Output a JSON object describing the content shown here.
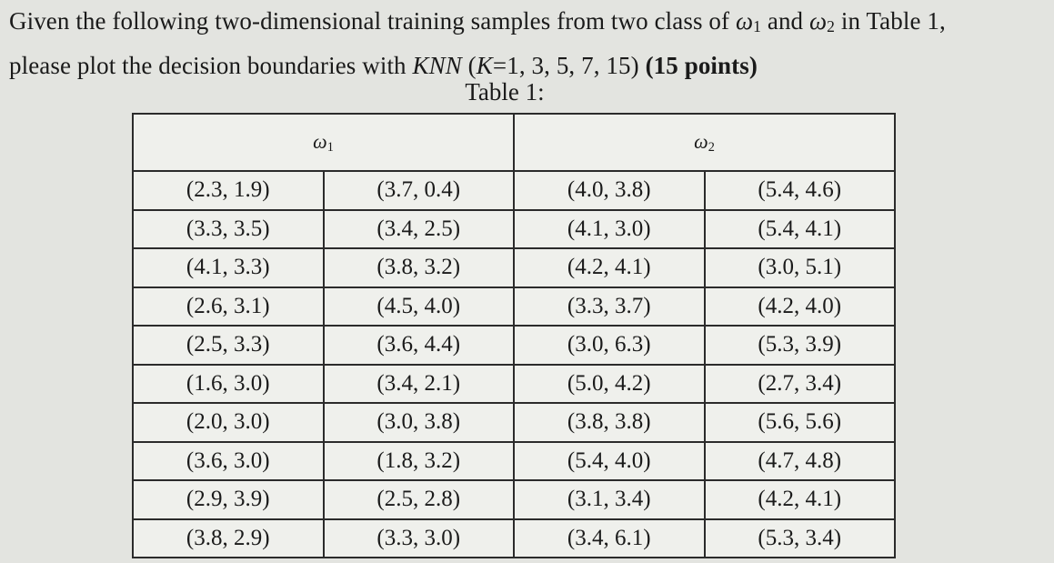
{
  "question": {
    "line1_a": "Given the following two-dimensional training samples from two class of ",
    "w1": "ω",
    "w1_sub": "1",
    "line1_and": " and ",
    "w2": "ω",
    "w2_sub": "2",
    "line1_b": " in Table 1,",
    "line2_a": "please plot the decision boundaries with ",
    "knn": "KNN",
    "paren_open": " (",
    "k": "K",
    "k_values": "=1, 3, 5, 7, 15)",
    "points": " (15 points)"
  },
  "table": {
    "caption": "Table 1:",
    "headers": [
      {
        "symbol": "ω",
        "sub": "1"
      },
      {
        "symbol": "ω",
        "sub": "2"
      }
    ],
    "rows": [
      [
        "(2.3, 1.9)",
        "(3.7, 0.4)",
        "(4.0, 3.8)",
        "(5.4, 4.6)"
      ],
      [
        "(3.3, 3.5)",
        "(3.4, 2.5)",
        "(4.1, 3.0)",
        "(5.4, 4.1)"
      ],
      [
        "(4.1, 3.3)",
        "(3.8, 3.2)",
        "(4.2, 4.1)",
        "(3.0, 5.1)"
      ],
      [
        "(2.6, 3.1)",
        "(4.5, 4.0)",
        "(3.3, 3.7)",
        "(4.2, 4.0)"
      ],
      [
        "(2.5, 3.3)",
        "(3.6, 4.4)",
        "(3.0, 6.3)",
        "(5.3, 3.9)"
      ],
      [
        "(1.6, 3.0)",
        "(3.4, 2.1)",
        "(5.0, 4.2)",
        "(2.7, 3.4)"
      ],
      [
        "(2.0, 3.0)",
        "(3.0, 3.8)",
        "(3.8, 3.8)",
        "(5.6, 5.6)"
      ],
      [
        "(3.6, 3.0)",
        "(1.8, 3.2)",
        "(5.4, 4.0)",
        "(4.7, 4.8)"
      ],
      [
        "(2.9, 3.9)",
        "(2.5, 2.8)",
        "(3.1, 3.4)",
        "(4.2, 4.1)"
      ],
      [
        "(3.8, 2.9)",
        "(3.3, 3.0)",
        "(3.4, 6.1)",
        "(5.3, 3.4)"
      ]
    ]
  }
}
